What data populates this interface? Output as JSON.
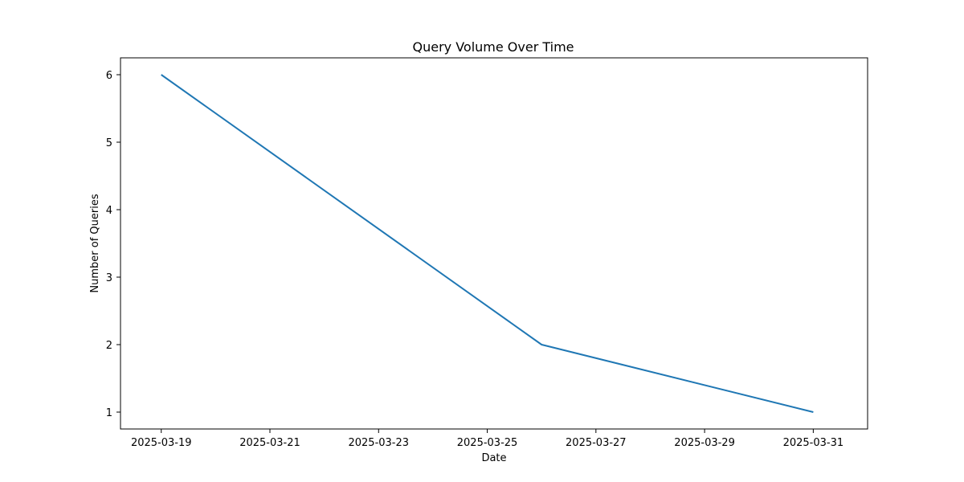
{
  "chart_data": {
    "type": "line",
    "title": "Query Volume Over Time",
    "xlabel": "Date",
    "ylabel": "Number of Queries",
    "x_ticks": [
      "2025-03-19",
      "2025-03-21",
      "2025-03-23",
      "2025-03-25",
      "2025-03-27",
      "2025-03-29",
      "2025-03-31"
    ],
    "y_ticks": [
      1,
      2,
      3,
      4,
      5,
      6
    ],
    "xlim": [
      "2025-03-18T06:00",
      "2025-04-01T00:00"
    ],
    "ylim": [
      0.75,
      6.25
    ],
    "grid": false,
    "legend": "none",
    "series": [
      {
        "color": "#1f77b4",
        "points": [
          {
            "x": "2025-03-19",
            "y": 6
          },
          {
            "x": "2025-03-26",
            "y": 2
          },
          {
            "x": "2025-03-31",
            "y": 1
          }
        ]
      }
    ]
  }
}
